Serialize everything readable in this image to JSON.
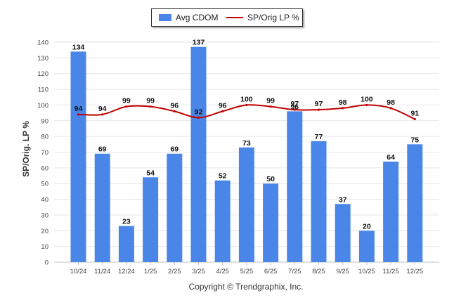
{
  "chart_data": {
    "type": "bar",
    "categories": [
      "10/24",
      "11/24",
      "12/24",
      "1/25",
      "2/25",
      "3/25",
      "4/25",
      "5/25",
      "6/25",
      "7/25",
      "8/25",
      "9/25",
      "10/25",
      "11/25",
      "12/25"
    ],
    "series": [
      {
        "name": "Avg CDOM",
        "kind": "bar",
        "color": "#4a86e8",
        "values": [
          134,
          69,
          23,
          54,
          69,
          137,
          52,
          73,
          50,
          96,
          77,
          37,
          20,
          64,
          75
        ]
      },
      {
        "name": "SP/Orig LP %",
        "kind": "line",
        "color": "#c00000",
        "values": [
          94,
          94,
          99,
          99,
          96,
          92,
          96,
          100,
          99,
          97,
          97,
          98,
          100,
          98,
          91
        ]
      }
    ],
    "ylabel": "SP/Orig. LP %",
    "ylim": [
      0,
      140
    ],
    "yticks": [
      0,
      10,
      20,
      30,
      40,
      50,
      60,
      70,
      80,
      90,
      100,
      110,
      120,
      130,
      140
    ],
    "grid": true,
    "legend": "top-center"
  },
  "legend": {
    "bar_label": "Avg CDOM",
    "line_label": "SP/Orig LP %"
  },
  "footer": "Copyright © Trendgraphix, Inc."
}
